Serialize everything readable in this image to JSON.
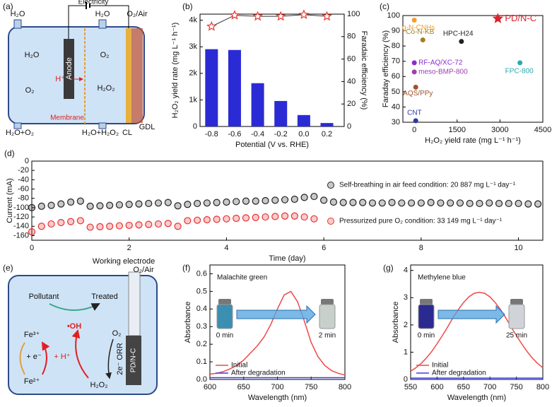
{
  "panel_a": {
    "label": "(a)",
    "electricity": "Electricity",
    "h2o_left": "H₂O",
    "h2o_right": "H₂O",
    "o2_air": "O₂/Air",
    "anode": "Anode",
    "h2o_inner": "H₂O",
    "o2_inner_left": "O₂",
    "o2_inner_right": "O₂",
    "h2o2_inner": "H₂O₂",
    "h_plus": "H⁺",
    "membrane": "Membrane",
    "out_left": "H₂O+O₂",
    "out_right": "H₂O+H₂O₂",
    "cl": "CL",
    "gdl": "GDL"
  },
  "panel_e": {
    "label": "(e)",
    "working_electrode": "Working electrode",
    "o2_air": "O₂/Air",
    "pollutant": "Pollutant",
    "treated": "Treated",
    "fe3": "Fe³⁺",
    "oh": "•OH",
    "e_minus": "+ e⁻",
    "h_plus": "+ H⁺",
    "fe2": "Fe²⁺",
    "o2": "O₂",
    "orr": "2e⁻ ORR",
    "h2o2": "H₂O₂",
    "electrode": "PD/N-C"
  },
  "chart_data": [
    {
      "type": "bar_line",
      "panel_label": "(b)",
      "xlabel": "Potential (V vs. RHE)",
      "ylabel": "H₂O₂ yield rate (mg L⁻¹ h⁻¹)",
      "y2label": "Faradaic efficiency (%)",
      "x": [
        -0.8,
        -0.6,
        -0.4,
        -0.2,
        0,
        0.2
      ],
      "xlim": [
        -0.9,
        0.35
      ],
      "xticks": [
        -0.8,
        -0.6,
        -0.4,
        -0.2,
        {
          "value": 0,
          "label": "0.0"
        },
        0.2
      ],
      "ylim": [
        0,
        4230
      ],
      "yticks": [
        0,
        {
          "value": 1000,
          "label": "1k"
        },
        {
          "value": 2000,
          "label": "2k"
        },
        {
          "value": 3000,
          "label": "3k"
        },
        {
          "value": 4000,
          "label": "4k"
        }
      ],
      "y2lim": [
        0,
        100
      ],
      "y2ticks": [
        0,
        20,
        40,
        60,
        80,
        100
      ],
      "series": [
        {
          "type": "bar",
          "color": "#2b2bd6",
          "values": [
            2910,
            2880,
            1630,
            960,
            430,
            130
          ]
        },
        {
          "type": "line",
          "marker": "star",
          "axis": "y2",
          "color": "#e8413c",
          "values": [
            89,
            99,
            98,
            98,
            99.5,
            98
          ]
        }
      ]
    },
    {
      "type": "scatter",
      "panel_label": "(c)",
      "xlabel": "H₂O₂ yield rate (mg L⁻¹ h⁻¹)",
      "ylabel": "Faraday efficiency (%)",
      "point_labels": true,
      "xlim": [
        -400,
        4500
      ],
      "xticks": [
        0,
        1500,
        3000,
        4500
      ],
      "ylim": [
        30,
        100
      ],
      "yticks": [
        30,
        40,
        50,
        60,
        70,
        80,
        90,
        100
      ],
      "series": [
        {
          "name": "PD/N-C",
          "color": "#e0202a",
          "marker": "star",
          "x": [
            2925
          ],
          "values": [
            98
          ]
        },
        {
          "name": "g-N-CNHs",
          "color": "#f0a030",
          "marker": "circle",
          "x": [
            0
          ],
          "values": [
            97
          ]
        },
        {
          "name": "Co-N-KB",
          "color": "#a08020",
          "marker": "circle",
          "x": [
            300
          ],
          "values": [
            84
          ]
        },
        {
          "name": "HPC-H24",
          "color": "#222222",
          "marker": "circle",
          "x": [
            1650
          ],
          "values": [
            83
          ]
        },
        {
          "name": "FPC-800",
          "color": "#2aa8b0",
          "marker": "circle",
          "x": [
            3700
          ],
          "values": [
            69
          ]
        },
        {
          "name": "RF-AQ/XC-72",
          "color": "#8a2bd0",
          "marker": "circle",
          "x": [
            0
          ],
          "values": [
            69
          ]
        },
        {
          "name": "meso-BMP-800",
          "color": "#9b3fb0",
          "marker": "circle",
          "x": [
            0
          ],
          "values": [
            63
          ]
        },
        {
          "name": "AQS/PPy",
          "color": "#a0522d",
          "marker": "circle",
          "x": [
            50
          ],
          "values": [
            53
          ]
        },
        {
          "name": "CNT",
          "color": "#2a3aa0",
          "marker": "circle",
          "x": [
            50
          ],
          "values": [
            31
          ]
        }
      ]
    },
    {
      "type": "scatter",
      "panel_label": "(d)",
      "xlabel": "Time (day)",
      "ylabel": "Current (mA)",
      "legend": "right",
      "xlim": [
        0,
        10.5
      ],
      "xticks": [
        0,
        2,
        4,
        6,
        8,
        10
      ],
      "ylim": [
        -170,
        0
      ],
      "yticks": [
        0,
        -20,
        -40,
        -60,
        -80,
        -100,
        -120,
        -140,
        -160
      ],
      "series": [
        {
          "name": "Self-breathing in air feed condition: 20 887 mg L⁻¹ day⁻¹",
          "color": "#222222",
          "marker": "circle",
          "x": [
            0,
            0.2,
            0.4,
            0.6,
            0.8,
            1.0,
            1.2,
            1.4,
            1.6,
            1.8,
            2.0,
            2.2,
            2.4,
            2.6,
            2.8,
            3.0,
            3.2,
            3.4,
            3.6,
            3.8,
            4.0,
            4.2,
            4.4,
            4.6,
            4.8,
            5.0,
            5.2,
            5.4,
            5.6,
            5.8,
            6.0,
            6.2,
            6.4,
            6.6,
            6.8,
            7.0,
            7.2,
            7.4,
            7.6,
            7.8,
            8.0,
            8.2,
            8.4,
            8.6,
            8.8,
            9.0,
            9.2,
            9.4,
            9.6,
            9.8,
            10.0,
            10.2,
            10.4
          ],
          "values": [
            -100,
            -97,
            -95,
            -92,
            -88,
            -86,
            -97,
            -96,
            -95,
            -94,
            -93,
            -92,
            -91,
            -90,
            -89,
            -96,
            -93,
            -91,
            -90,
            -89,
            -88,
            -87,
            -86,
            -86,
            -85,
            -84,
            -83,
            -82,
            -78,
            -76,
            -84,
            -88,
            -89,
            -89,
            -89,
            -90,
            -90,
            -89,
            -90,
            -90,
            -90,
            -89,
            -90,
            -90,
            -90,
            -91,
            -91,
            -90,
            -91,
            -91,
            -91,
            -92,
            -92
          ]
        },
        {
          "name": "Pressurized pure O₂ condition: 33 149 mg L⁻¹ day⁻¹",
          "color": "#e83030",
          "marker": "circle",
          "x": [
            0,
            0.2,
            0.4,
            0.6,
            0.8,
            1.0,
            1.2,
            1.4,
            1.6,
            1.8,
            2.0,
            2.2,
            2.4,
            2.6,
            2.8,
            3.0,
            3.2,
            3.4,
            3.6,
            3.8,
            4.0,
            4.2,
            4.4,
            4.6,
            4.8,
            5.0,
            5.2,
            5.4,
            5.6,
            5.8
          ],
          "values": [
            -152,
            -140,
            -135,
            -132,
            -130,
            -128,
            -142,
            -141,
            -140,
            -139,
            -138,
            -137,
            -136,
            -135,
            -134,
            -140,
            -128,
            -127,
            -126,
            -125,
            -124,
            -123,
            -122,
            -121,
            -120,
            -119,
            -118,
            -118,
            -120,
            -124
          ]
        }
      ]
    },
    {
      "type": "line",
      "panel_label": "(f)",
      "xlabel": "Wavelength (nm)",
      "ylabel": "Absorbance",
      "annotation": "Malachite green",
      "vial_labels": [
        "0 min",
        "2 min"
      ],
      "legend": "lower left",
      "xlim": [
        600,
        800
      ],
      "xticks": [
        600,
        650,
        700,
        750,
        800
      ],
      "ylim": [
        0,
        0.65
      ],
      "yticks": [
        {
          "value": 0,
          "label": "0.0"
        },
        0.1,
        0.2,
        0.3,
        0.4,
        0.5,
        0.6
      ],
      "series": [
        {
          "name": "Initial",
          "color": "#f04848",
          "x": [
            600,
            610,
            620,
            630,
            640,
            650,
            660,
            670,
            680,
            690,
            700,
            710,
            720,
            730,
            740,
            750,
            760,
            770,
            780,
            790,
            800
          ],
          "values": [
            0.03,
            0.035,
            0.045,
            0.06,
            0.08,
            0.11,
            0.15,
            0.19,
            0.24,
            0.31,
            0.4,
            0.48,
            0.5,
            0.44,
            0.33,
            0.21,
            0.13,
            0.08,
            0.05,
            0.035,
            0.025
          ]
        },
        {
          "name": "After degradation",
          "color": "#3b3bf0",
          "x": [
            600,
            650,
            700,
            750,
            800
          ],
          "values": [
            0.01,
            0.01,
            0.01,
            0.01,
            0.01
          ]
        }
      ]
    },
    {
      "type": "line",
      "panel_label": "(g)",
      "xlabel": "Wavelength (nm)",
      "ylabel": "Absorbance",
      "annotation": "Methylene blue",
      "vial_labels": [
        "0 min",
        "25 min"
      ],
      "legend": "lower left",
      "xlim": [
        550,
        800
      ],
      "xticks": [
        550,
        600,
        650,
        700,
        750,
        800
      ],
      "ylim": [
        0,
        4.2
      ],
      "yticks": [
        0,
        1,
        2,
        3,
        4
      ],
      "series": [
        {
          "name": "Initial",
          "color": "#f04848",
          "x": [
            550,
            560,
            570,
            580,
            590,
            600,
            610,
            620,
            630,
            640,
            650,
            660,
            670,
            680,
            690,
            700,
            710,
            720,
            730,
            740,
            750,
            760,
            770,
            780,
            790,
            800
          ],
          "values": [
            0.3,
            0.43,
            0.59,
            0.79,
            1.03,
            1.31,
            1.61,
            1.93,
            2.26,
            2.56,
            2.82,
            3.03,
            3.16,
            3.2,
            3.16,
            3.03,
            2.82,
            2.56,
            2.26,
            1.93,
            1.61,
            1.31,
            1.03,
            0.79,
            0.59,
            0.43
          ]
        },
        {
          "name": "After degradation",
          "color": "#3b3bf0",
          "x": [
            550,
            600,
            650,
            700,
            750,
            800
          ],
          "values": [
            0.05,
            0.05,
            0.05,
            0.05,
            0.05,
            0.05
          ]
        }
      ]
    }
  ]
}
